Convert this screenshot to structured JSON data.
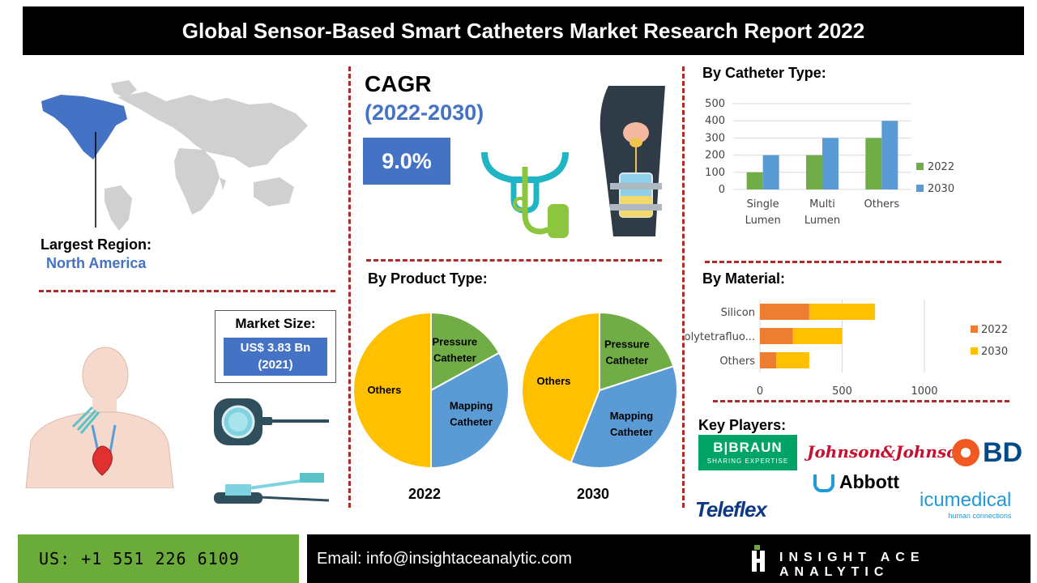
{
  "header": {
    "title": "Global Sensor-Based Smart Catheters Market Research Report 2022"
  },
  "region": {
    "label": "Largest Region:",
    "value": "North America"
  },
  "market_size": {
    "label": "Market Size:",
    "value_line1": "US$ 3.83 Bn",
    "value_line2": "(2021)"
  },
  "cagr": {
    "label": "CAGR",
    "period": "(2022-2030)",
    "value": "9.0%"
  },
  "catheter_type": {
    "heading": "By Catheter Type:",
    "chart_data": {
      "type": "bar",
      "categories": [
        [
          "Single",
          "Lumen"
        ],
        [
          "Multi",
          "Lumen"
        ],
        [
          "Others"
        ]
      ],
      "series": [
        {
          "name": "2022",
          "values": [
            100,
            200,
            300
          ]
        },
        {
          "name": "2030",
          "values": [
            200,
            300,
            400
          ]
        }
      ],
      "ylim": [
        0,
        500
      ],
      "yticks": [
        0,
        100,
        200,
        300,
        400,
        500
      ],
      "colors": [
        "#70ad47",
        "#5b9bd5"
      ],
      "legend": "right",
      "grid": true
    }
  },
  "product_type": {
    "heading": "By Product Type:",
    "chart_data": [
      {
        "type": "pie",
        "label": "2022",
        "slices": [
          {
            "name": [
              "Pressure",
              "Catheter"
            ],
            "value": 17,
            "color": "#70ad47"
          },
          {
            "name": [
              "Mapping",
              "Catheter"
            ],
            "value": 33,
            "color": "#5b9bd5"
          },
          {
            "name": [
              "Others"
            ],
            "value": 50,
            "color": "#ffc000"
          }
        ]
      },
      {
        "type": "pie",
        "label": "2030",
        "slices": [
          {
            "name": [
              "Pressure",
              "Catheter"
            ],
            "value": 20,
            "color": "#70ad47"
          },
          {
            "name": [
              "Mapping",
              "Catheter"
            ],
            "value": 36,
            "color": "#5b9bd5"
          },
          {
            "name": [
              "Others"
            ],
            "value": 44,
            "color": "#ffc000"
          }
        ]
      }
    ]
  },
  "material": {
    "heading": "By Material:",
    "chart_data": {
      "type": "bar",
      "orientation": "horizontal",
      "stacked": true,
      "categories": [
        "Silicon",
        "Polytetrafluo...",
        "Others"
      ],
      "series": [
        {
          "name": "2022",
          "values": [
            300,
            200,
            100
          ]
        },
        {
          "name": "2030",
          "values": [
            400,
            300,
            200
          ]
        }
      ],
      "xlim": [
        0,
        1000
      ],
      "xticks": [
        0,
        500,
        1000
      ],
      "colors": [
        "#ed7d31",
        "#ffc000"
      ],
      "legend": "right",
      "grid": true
    }
  },
  "key_players": {
    "heading": "Key Players:",
    "bbraun_top": "B|BRAUN",
    "bbraun_sub": "SHARING EXPERTISE",
    "jnj": "Johnson&Johnson",
    "bd": "BD",
    "abbott": "Abbott",
    "teleflex": "Teleflex",
    "icu_top": "icumedical",
    "icu_sub": "human connections"
  },
  "footer": {
    "phone": "US: +1 551 226 6109",
    "email": "Email: info@insightaceanalytic.com",
    "brand": "INSIGHT ACE ANALYTIC"
  }
}
